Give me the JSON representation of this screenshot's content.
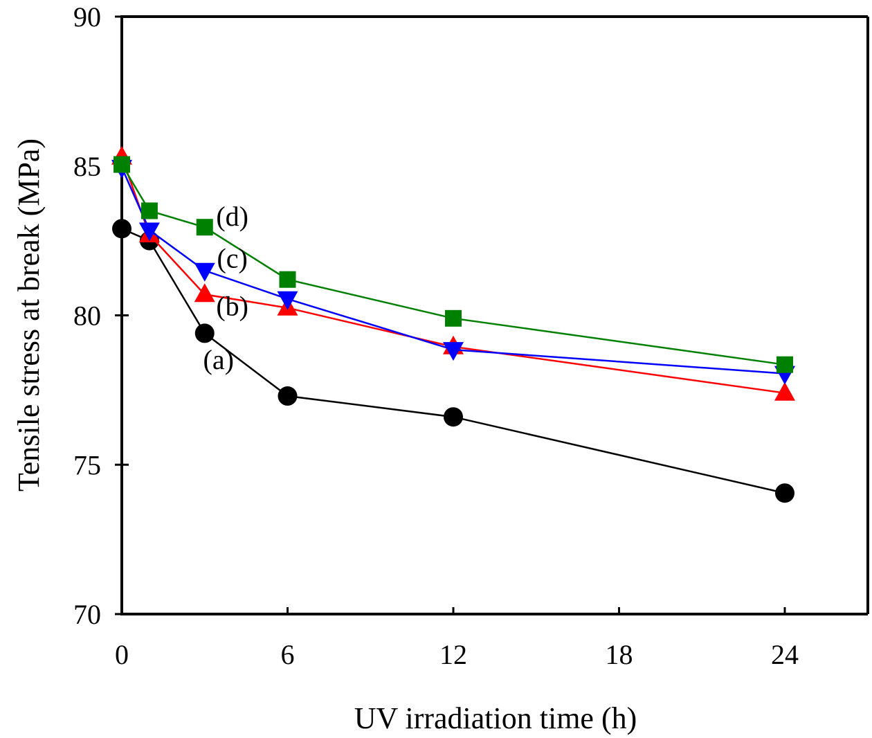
{
  "chart_data": {
    "type": "line",
    "title": "",
    "xlabel": "UV irradiation time (h)",
    "ylabel": "Tensile stress at break (MPa)",
    "xlim": [
      0,
      27
    ],
    "ylim": [
      70,
      90
    ],
    "xticks": [
      0,
      6,
      12,
      18,
      24
    ],
    "yticks": [
      70,
      75,
      80,
      85,
      90
    ],
    "xtick_labels": [
      "0",
      "6",
      "12",
      "18",
      "24"
    ],
    "ytick_labels": [
      "70",
      "75",
      "80",
      "85",
      "90"
    ],
    "grid": false,
    "legend": "none (inline labels)",
    "x": [
      0,
      1,
      3,
      6,
      12,
      24
    ],
    "series": [
      {
        "name": "(a)",
        "marker": "circle",
        "color": "#000000",
        "values": [
          82.9,
          82.5,
          79.4,
          77.3,
          76.6,
          74.05
        ],
        "label_at": [
          3.5,
          78.2
        ]
      },
      {
        "name": "(b)",
        "marker": "triangle-up",
        "color": "#ff0000",
        "values": [
          85.3,
          82.7,
          80.7,
          80.25,
          78.95,
          77.4
        ],
        "label_at": [
          4.0,
          80.0
        ]
      },
      {
        "name": "(c)",
        "marker": "triangle-down",
        "color": "#0000ff",
        "values": [
          84.95,
          82.85,
          81.5,
          80.55,
          78.85,
          78.05
        ],
        "label_at": [
          4.0,
          81.6
        ]
      },
      {
        "name": "(d)",
        "marker": "square",
        "color": "#008000",
        "values": [
          85.05,
          83.5,
          82.95,
          81.2,
          79.9,
          78.35
        ],
        "label_at": [
          4.0,
          83.0
        ]
      }
    ]
  }
}
